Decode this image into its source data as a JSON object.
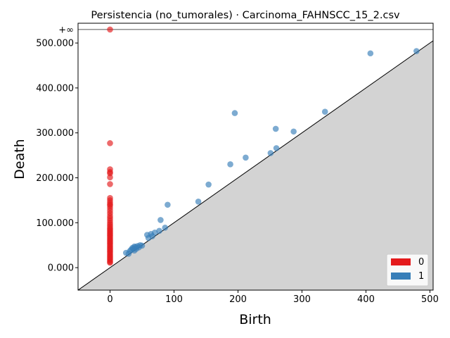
{
  "chart_data": {
    "type": "scatter",
    "title": "Persistencia (no_tumorales) · Carcinoma_FAHNSCC_15_2.csv",
    "xlabel": "Birth",
    "ylabel": "Death",
    "xlim": [
      -50,
      505
    ],
    "ylim": [
      -50,
      544
    ],
    "x_ticks": [
      0,
      100,
      200,
      300,
      400,
      500
    ],
    "x_tick_labels": [
      "0",
      "100",
      "200",
      "300",
      "400",
      "500"
    ],
    "y_ticks": [
      0,
      100,
      200,
      300,
      400,
      500
    ],
    "y_tick_labels": [
      "0.000",
      "100.000",
      "200.000",
      "300.000",
      "400.000",
      "500.000"
    ],
    "infinity_value": 530,
    "infinity_label": "+∞",
    "diagonal": true,
    "grid": false,
    "legend_position": "bottom-right",
    "series": [
      {
        "name": "0",
        "color": "#e41a1c",
        "points": [
          [
            0,
            530
          ],
          [
            0,
            277
          ],
          [
            0,
            219
          ],
          [
            0,
            213
          ],
          [
            0,
            210
          ],
          [
            0,
            201
          ],
          [
            0,
            186
          ],
          [
            0,
            155
          ],
          [
            0,
            150
          ],
          [
            0,
            145
          ],
          [
            0,
            141
          ],
          [
            0,
            138
          ],
          [
            0,
            133
          ],
          [
            0,
            127
          ],
          [
            0,
            121
          ],
          [
            0,
            115
          ],
          [
            0,
            110
          ],
          [
            0,
            105
          ],
          [
            0,
            100
          ],
          [
            0,
            96
          ],
          [
            0,
            92
          ],
          [
            0,
            88
          ],
          [
            0,
            85
          ],
          [
            0,
            82
          ],
          [
            0,
            79
          ],
          [
            0,
            76
          ],
          [
            0,
            73
          ],
          [
            0,
            70
          ],
          [
            0,
            67
          ],
          [
            0,
            64
          ],
          [
            0,
            61
          ],
          [
            0,
            58
          ],
          [
            0,
            55
          ],
          [
            0,
            52
          ],
          [
            0,
            49
          ],
          [
            0,
            46
          ],
          [
            0,
            43
          ],
          [
            0,
            40
          ],
          [
            0,
            37
          ],
          [
            0,
            34
          ],
          [
            0,
            31
          ],
          [
            0,
            28
          ],
          [
            0,
            25
          ],
          [
            0,
            22
          ],
          [
            0,
            19
          ],
          [
            0,
            16
          ],
          [
            0,
            13
          ],
          [
            0,
            11
          ]
        ]
      },
      {
        "name": "1",
        "color": "#377eb8",
        "points": [
          [
            479,
            482
          ],
          [
            407,
            477
          ],
          [
            336,
            347
          ],
          [
            195,
            344
          ],
          [
            259,
            309
          ],
          [
            287,
            303
          ],
          [
            260,
            266
          ],
          [
            251,
            255
          ],
          [
            212,
            245
          ],
          [
            188,
            230
          ],
          [
            154,
            185
          ],
          [
            138,
            147
          ],
          [
            90,
            140
          ],
          [
            79,
            106
          ],
          [
            86,
            89
          ],
          [
            77,
            82
          ],
          [
            70,
            78
          ],
          [
            64,
            75
          ],
          [
            58,
            73
          ],
          [
            60,
            66
          ],
          [
            66,
            70
          ],
          [
            47,
            50
          ],
          [
            43,
            48
          ],
          [
            38,
            47
          ],
          [
            35,
            44
          ],
          [
            33,
            40
          ],
          [
            38,
            38
          ],
          [
            29,
            31
          ],
          [
            25,
            33
          ],
          [
            45,
            45
          ],
          [
            41,
            42
          ],
          [
            36,
            42
          ],
          [
            50,
            49
          ],
          [
            31,
            37
          ],
          [
            40,
            46
          ]
        ]
      }
    ]
  }
}
